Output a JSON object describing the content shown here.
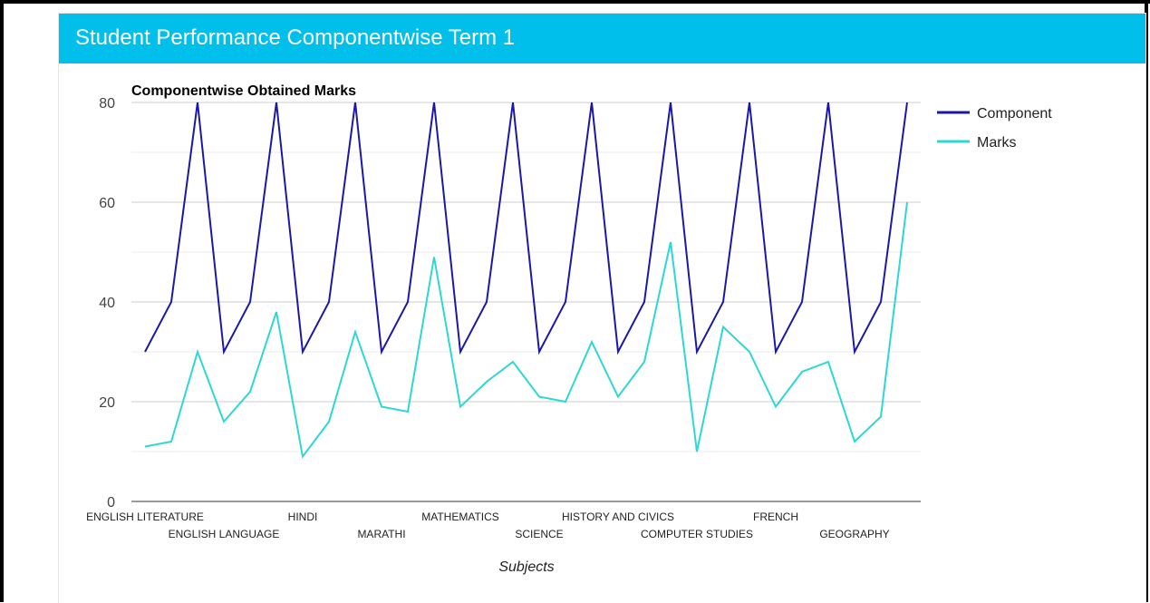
{
  "header": {
    "title": "Student Performance Componentwise Term 1"
  },
  "colors": {
    "header_bg": "#00bfeb",
    "component": "#1c17a8",
    "marks": "#2ed8d2",
    "grid": "#cccccc"
  },
  "chart_data": {
    "type": "line",
    "title": "Componentwise Obtained Marks",
    "xlabel": "Subjects",
    "ylabel": "",
    "ylim": [
      0,
      80
    ],
    "yticks": [
      0,
      20,
      40,
      60,
      80
    ],
    "grid": true,
    "legend_position": "right",
    "categories": [
      "ENGLISH LITERATURE",
      "",
      "",
      "ENGLISH LANGUAGE",
      "",
      "",
      "HINDI",
      "",
      "",
      "MARATHI",
      "",
      "",
      "MATHEMATICS",
      "",
      "",
      "SCIENCE",
      "",
      "",
      "HISTORY AND CIVICS",
      "",
      "",
      "COMPUTER STUDIES",
      "",
      "",
      "FRENCH",
      "",
      "",
      "GEOGRAPHY",
      "",
      ""
    ],
    "series": [
      {
        "name": "Component",
        "color": "#1c17a8",
        "values": [
          30,
          40,
          80,
          30,
          40,
          80,
          30,
          40,
          80,
          30,
          40,
          80,
          30,
          40,
          80,
          30,
          40,
          80,
          30,
          40,
          80,
          30,
          40,
          80,
          30,
          40,
          80,
          30,
          40,
          80
        ]
      },
      {
        "name": "Marks",
        "color": "#2ed8d2",
        "values": [
          11,
          12,
          30,
          16,
          22,
          38,
          9,
          16,
          34,
          19,
          18,
          49,
          19,
          24,
          28,
          21,
          20,
          32,
          21,
          28,
          52,
          10,
          35,
          30,
          19,
          26,
          28,
          12,
          17,
          60
        ]
      }
    ]
  }
}
